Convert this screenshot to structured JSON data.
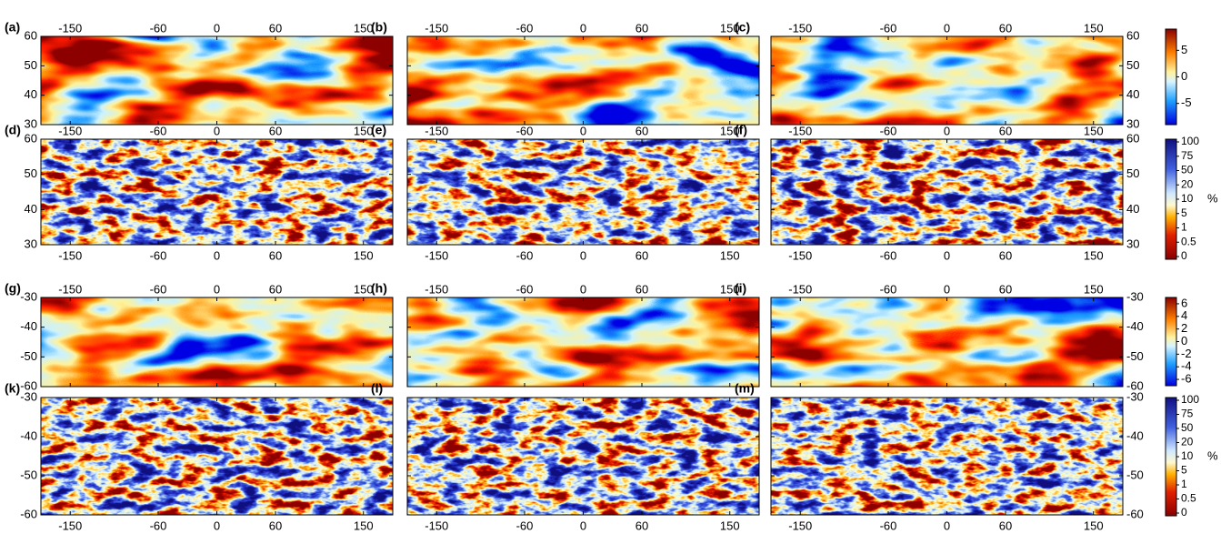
{
  "panels": [
    {
      "label": "(a)"
    },
    {
      "label": "(b)"
    },
    {
      "label": "(c)"
    },
    {
      "label": "(d)"
    },
    {
      "label": "(e)"
    },
    {
      "label": "(f)"
    },
    {
      "label": "(g)"
    },
    {
      "label": "(h)"
    },
    {
      "label": "(i)"
    },
    {
      "label": "(k)"
    },
    {
      "label": "(l)"
    },
    {
      "label": "(m)"
    }
  ],
  "lon_lim": [
    -180,
    180
  ],
  "lon_ticks": [
    -150,
    -60,
    0,
    60,
    150
  ],
  "north": {
    "lat_lim": [
      30,
      60
    ],
    "lat_ticks": [
      30,
      40,
      50,
      60
    ]
  },
  "south": {
    "lat_lim": [
      -60,
      -30
    ],
    "lat_ticks": [
      -60,
      -50,
      -40,
      -30
    ]
  },
  "colorbars": [
    {
      "lim": [
        -9,
        9
      ],
      "ticks": [
        -5,
        0,
        5
      ]
    },
    {
      "ticks": [
        0,
        0.5,
        1,
        5,
        10,
        20,
        50,
        75,
        100
      ],
      "unit": "%"
    },
    {
      "lim": [
        -7,
        7
      ],
      "ticks": [
        -6,
        -4,
        -2,
        0,
        2,
        4,
        6
      ]
    },
    {
      "ticks": [
        0,
        0.5,
        1,
        5,
        10,
        20,
        50,
        75,
        100
      ],
      "unit": "%"
    }
  ]
}
